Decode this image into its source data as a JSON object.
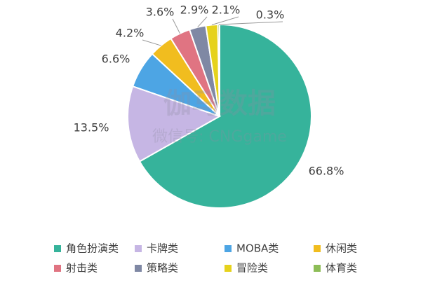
{
  "chart_data": {
    "type": "pie",
    "watermark": [
      "伽马数据",
      "微信号: CNGgame"
    ],
    "categories": [
      "角色扮演类",
      "卡牌类",
      "MOBA类",
      "休闲类",
      "射击类",
      "策略类",
      "冒险类",
      "体育类"
    ],
    "values": [
      66.8,
      13.5,
      6.6,
      4.2,
      3.6,
      2.9,
      2.1,
      0.3
    ],
    "value_labels": [
      "66.8%",
      "13.5%",
      "6.6%",
      "4.2%",
      "3.6%",
      "2.9%",
      "2.1%",
      "0.3%"
    ],
    "colors": [
      "#36b39b",
      "#c6b6e4",
      "#4da5e4",
      "#f1bd1f",
      "#e07482",
      "#7f88a4",
      "#e6d21c",
      "#8dbd57"
    ],
    "legend": "bottom"
  }
}
